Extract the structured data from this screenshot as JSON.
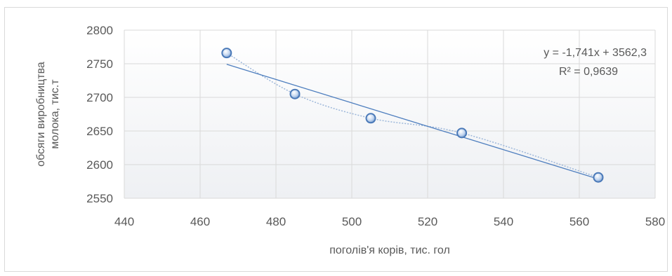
{
  "chart_data": {
    "type": "scatter",
    "xlabel": "поголів'я корів, тис. гол",
    "ylabel_lines": [
      "обсяги виробництва",
      "молока, тис.т"
    ],
    "xlim": [
      440,
      580
    ],
    "ylim": [
      2550,
      2800
    ],
    "x_ticks": [
      "440",
      "460",
      "480",
      "500",
      "520",
      "540",
      "560",
      "580"
    ],
    "y_ticks": [
      "2550",
      "2600",
      "2650",
      "2700",
      "2750",
      "2800"
    ],
    "grid": true,
    "points": [
      {
        "x": 467,
        "y": 2766
      },
      {
        "x": 485,
        "y": 2705
      },
      {
        "x": 505,
        "y": 2669
      },
      {
        "x": 529,
        "y": 2647
      },
      {
        "x": 565,
        "y": 2581
      }
    ],
    "trendline": {
      "type": "linear",
      "slope": -1.741,
      "intercept": 3562.3,
      "equation": "y = -1,741x + 3562,3",
      "r_squared": "R² = 0,9639"
    },
    "colors": {
      "marker_fill": "#a9c4e8",
      "marker_stroke": "#4a79b8",
      "trend": "#4f7fbf",
      "smooth": "#9db7da",
      "grid": "#d9d9d9"
    }
  }
}
